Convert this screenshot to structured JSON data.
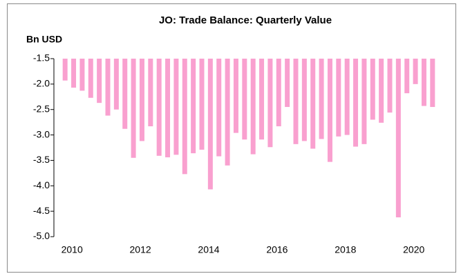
{
  "chart_data": {
    "type": "bar",
    "title": "JO: Trade Balance: Quarterly Value",
    "y_label": "Bn USD",
    "categories": [
      "2010",
      null,
      null,
      null,
      null,
      null,
      null,
      null,
      "2012",
      null,
      null,
      null,
      null,
      null,
      null,
      null,
      "2014",
      null,
      null,
      null,
      null,
      null,
      null,
      null,
      "2016",
      null,
      null,
      null,
      null,
      null,
      null,
      null,
      "2018",
      null,
      null,
      null,
      null,
      null,
      null,
      null,
      "2020",
      null,
      null,
      null
    ],
    "values": [
      -1.93,
      -2.07,
      -2.13,
      -2.27,
      -2.37,
      -2.62,
      -2.5,
      -2.88,
      -3.45,
      -3.12,
      -2.83,
      -3.41,
      -3.44,
      -3.39,
      -3.77,
      -3.36,
      -3.29,
      -4.07,
      -3.42,
      -3.6,
      -2.96,
      -3.09,
      -3.38,
      -3.09,
      -3.24,
      -2.83,
      -2.45,
      -3.18,
      -3.12,
      -3.27,
      -3.08,
      -3.53,
      -3.03,
      -3.0,
      -3.23,
      -3.18,
      -2.7,
      -2.76,
      -2.56,
      -4.62,
      -2.18,
      -2.0,
      -2.43,
      -2.45
    ],
    "color": "#f9a0cf",
    "ylim": [
      -5.0,
      -1.5
    ],
    "yticks": [
      {
        "value": -5.0,
        "label": "-5.0"
      },
      {
        "value": -4.5,
        "label": "-4.5"
      },
      {
        "value": -4.0,
        "label": "-4.0"
      },
      {
        "value": -3.5,
        "label": "-3.5"
      },
      {
        "value": -3.0,
        "label": "-3.0"
      },
      {
        "value": -2.5,
        "label": "-2.5"
      },
      {
        "value": -2.0,
        "label": "-2.0"
      },
      {
        "value": -1.5,
        "label": "-1.5"
      }
    ],
    "grid": false
  }
}
